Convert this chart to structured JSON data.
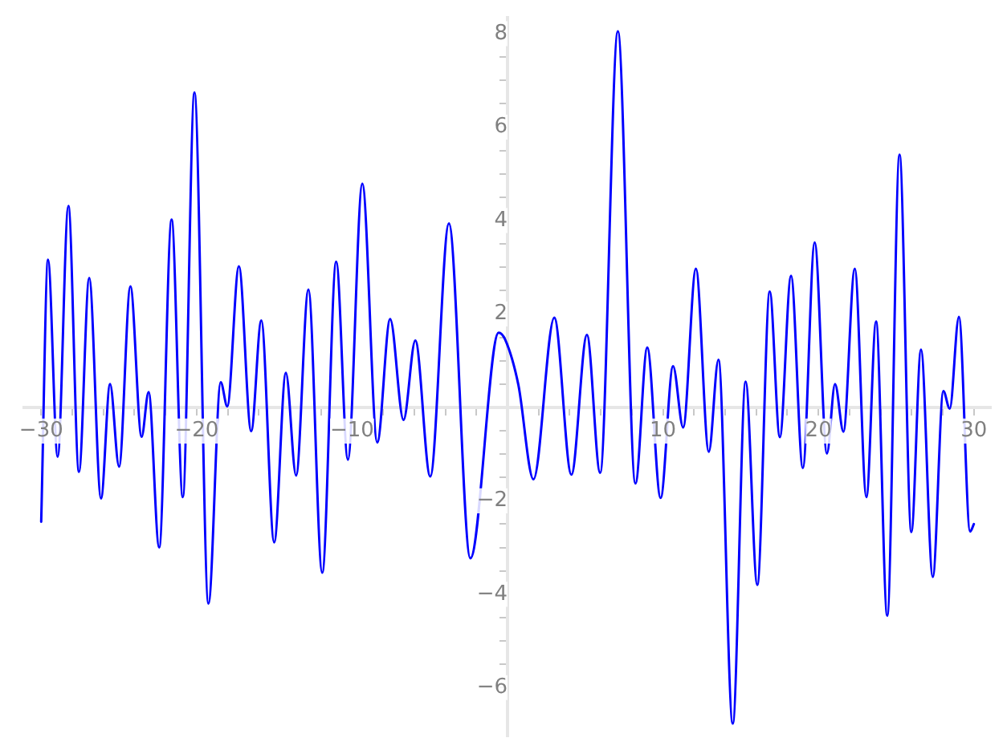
{
  "chart_data": {
    "type": "line",
    "marker": "none",
    "grid": false,
    "legend": false,
    "xlim": [
      -31.1,
      31.1
    ],
    "ylim": [
      -7.05,
      8.35
    ],
    "xticks": [
      {
        "value": -30,
        "label": "−30"
      },
      {
        "value": -28,
        "label": null
      },
      {
        "value": -26,
        "label": null
      },
      {
        "value": -24,
        "label": null
      },
      {
        "value": -22,
        "label": null
      },
      {
        "value": -20,
        "label": "−20"
      },
      {
        "value": -18,
        "label": null
      },
      {
        "value": -16,
        "label": null
      },
      {
        "value": -14,
        "label": null
      },
      {
        "value": -12,
        "label": null
      },
      {
        "value": -10,
        "label": "−10"
      },
      {
        "value": -8,
        "label": null
      },
      {
        "value": -6,
        "label": null
      },
      {
        "value": -4,
        "label": null
      },
      {
        "value": -2,
        "label": null
      },
      {
        "value": 2,
        "label": null
      },
      {
        "value": 4,
        "label": null
      },
      {
        "value": 6,
        "label": null
      },
      {
        "value": 8,
        "label": null
      },
      10,
      {
        "value": 12,
        "label": null
      },
      {
        "value": 14,
        "label": null
      },
      {
        "value": 16,
        "label": null
      },
      {
        "value": 18,
        "label": null
      },
      20,
      {
        "value": 22,
        "label": null
      },
      {
        "value": 24,
        "label": null
      },
      {
        "value": 26,
        "label": null
      },
      {
        "value": 28,
        "label": null
      },
      30
    ],
    "yticks": [
      {
        "value": -6,
        "label": "−6"
      },
      {
        "value": -5.5,
        "label": null
      },
      {
        "value": -5,
        "label": null
      },
      {
        "value": -4.5,
        "label": null
      },
      {
        "value": -4,
        "label": "−4"
      },
      {
        "value": -3.5,
        "label": null
      },
      {
        "value": -3,
        "label": null
      },
      {
        "value": -2.5,
        "label": null
      },
      {
        "value": -2,
        "label": "−2"
      },
      {
        "value": -1.5,
        "label": null
      },
      {
        "value": -1,
        "label": null
      },
      {
        "value": -0.5,
        "label": null
      },
      {
        "value": 0.5,
        "label": null
      },
      {
        "value": 1,
        "label": null
      },
      {
        "value": 1.5,
        "label": null
      },
      2,
      {
        "value": 2.5,
        "label": null
      },
      {
        "value": 3,
        "label": null
      },
      {
        "value": 3.5,
        "label": null
      },
      4,
      {
        "value": 4.5,
        "label": null
      },
      {
        "value": 5,
        "label": null
      },
      {
        "value": 5.5,
        "label": null
      },
      6,
      {
        "value": 6.5,
        "label": null
      },
      {
        "value": 7,
        "label": null
      },
      {
        "value": 7.5,
        "label": null
      },
      8
    ],
    "series": [
      {
        "color": "#0000ff",
        "line_style": "solid",
        "x": [
          -30,
          -29.56,
          -28.94,
          -28.25,
          -27.57,
          -26.91,
          -26.15,
          -25.57,
          -24.99,
          -24.26,
          -23.54,
          -23.09,
          -22.41,
          -21.61,
          -20.89,
          -20.14,
          -19.24,
          -18.45,
          -18.03,
          -17.28,
          -16.49,
          -15.84,
          -15.01,
          -14.26,
          -13.6,
          -12.81,
          -11.92,
          -11.02,
          -10.27,
          -9.34,
          -8.38,
          -7.55,
          -6.69,
          -5.93,
          -4.97,
          -3.77,
          -2.39,
          -0.57,
          -0.15,
          0.7,
          1.67,
          3.01,
          4.11,
          5.11,
          5.96,
          7.1,
          8.23,
          8.99,
          9.85,
          10.65,
          11.3,
          12.12,
          12.95,
          13.57,
          14.49,
          15.32,
          16.07,
          16.87,
          17.52,
          18.24,
          19,
          19.76,
          20.55,
          21.07,
          21.61,
          22.34,
          23.09,
          23.71,
          24.43,
          25.22,
          25.98,
          26.6,
          27.36,
          28.04,
          28.45,
          29.04,
          29.76,
          30
        ],
        "values": [
          -2.45,
          3.16,
          -1.06,
          4.31,
          -1.38,
          2.77,
          -1.95,
          0.5,
          -1.27,
          2.59,
          -0.63,
          0.33,
          -3,
          4.02,
          -1.92,
          6.74,
          -4.2,
          0.54,
          0.02,
          3.02,
          -0.51,
          1.86,
          -2.89,
          0.74,
          -1.46,
          2.52,
          -3.54,
          3.12,
          -1.12,
          4.79,
          -0.75,
          1.89,
          -0.27,
          1.43,
          -1.48,
          3.94,
          -3.23,
          1.6,
          1.45,
          0.48,
          -1.54,
          1.92,
          -1.44,
          1.55,
          -1.4,
          8.05,
          -1.63,
          1.28,
          -1.94,
          0.88,
          -0.43,
          2.97,
          -0.95,
          1.02,
          -6.77,
          0.55,
          -3.8,
          2.48,
          -0.64,
          2.82,
          -1.3,
          3.53,
          -0.99,
          0.5,
          -0.52,
          2.97,
          -1.92,
          1.84,
          -4.46,
          5.41,
          -2.67,
          1.24,
          -3.63,
          0.35,
          -0.03,
          1.94,
          -2.66,
          -2.5
        ]
      }
    ]
  }
}
